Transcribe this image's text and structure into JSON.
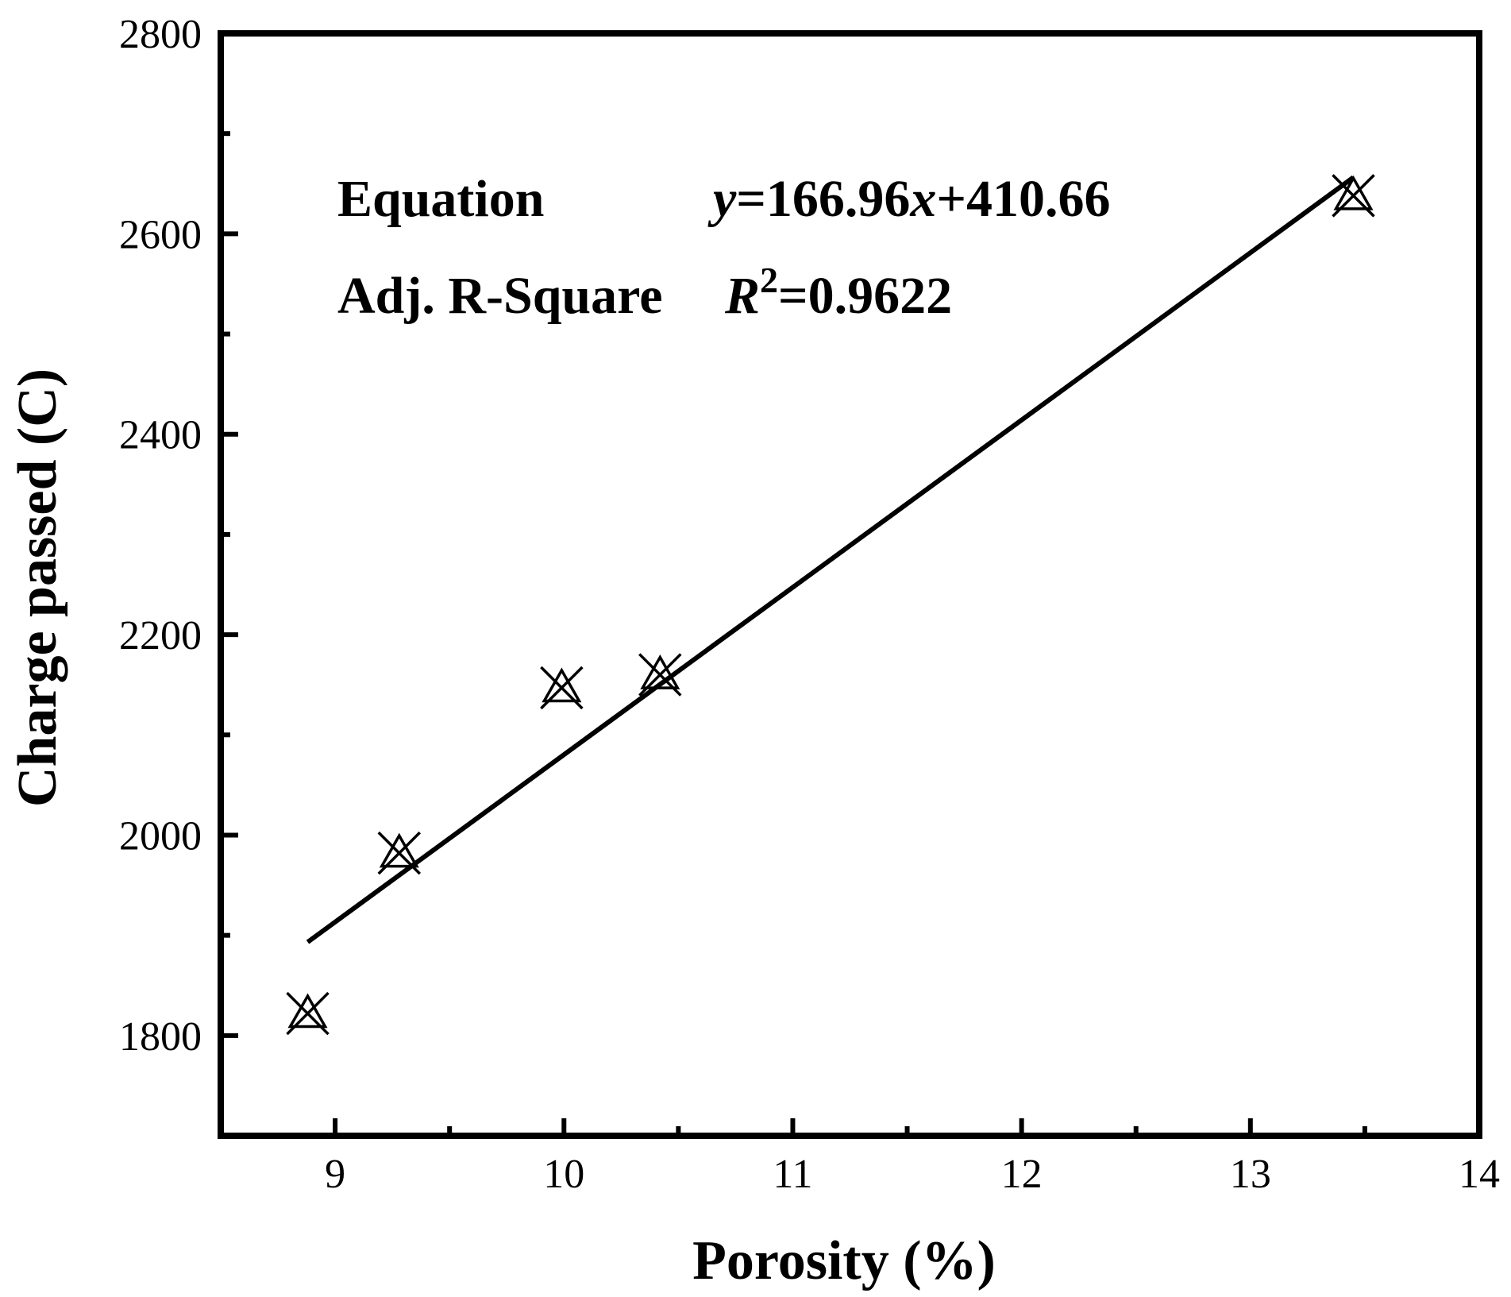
{
  "chart_data": {
    "type": "scatter",
    "xlabel": "Porosity (%)",
    "ylabel": "Charge passed (C)",
    "xlim": [
      8.5,
      14
    ],
    "ylim": [
      1700,
      2800
    ],
    "xticks": [
      9,
      10,
      11,
      12,
      13,
      14
    ],
    "yticks": [
      1800,
      2000,
      2200,
      2400,
      2600,
      2800
    ],
    "grid": false,
    "points": [
      {
        "x": 8.88,
        "y": 1822
      },
      {
        "x": 9.28,
        "y": 1982
      },
      {
        "x": 9.99,
        "y": 2147
      },
      {
        "x": 10.42,
        "y": 2160
      },
      {
        "x": 13.45,
        "y": 2638
      }
    ],
    "fit": {
      "slope": 166.96,
      "intercept": 410.66,
      "x_range": [
        8.88,
        13.45
      ]
    },
    "annotations": {
      "equation_label": "Equation",
      "equation_y": "y",
      "equation_mid": "=166.96",
      "equation_x": "x",
      "equation_tail": "+410.66",
      "r2_label": "Adj. R-Square",
      "r2_symbol": "R",
      "r2_exp": "2",
      "r2_value": "=0.9622"
    }
  }
}
